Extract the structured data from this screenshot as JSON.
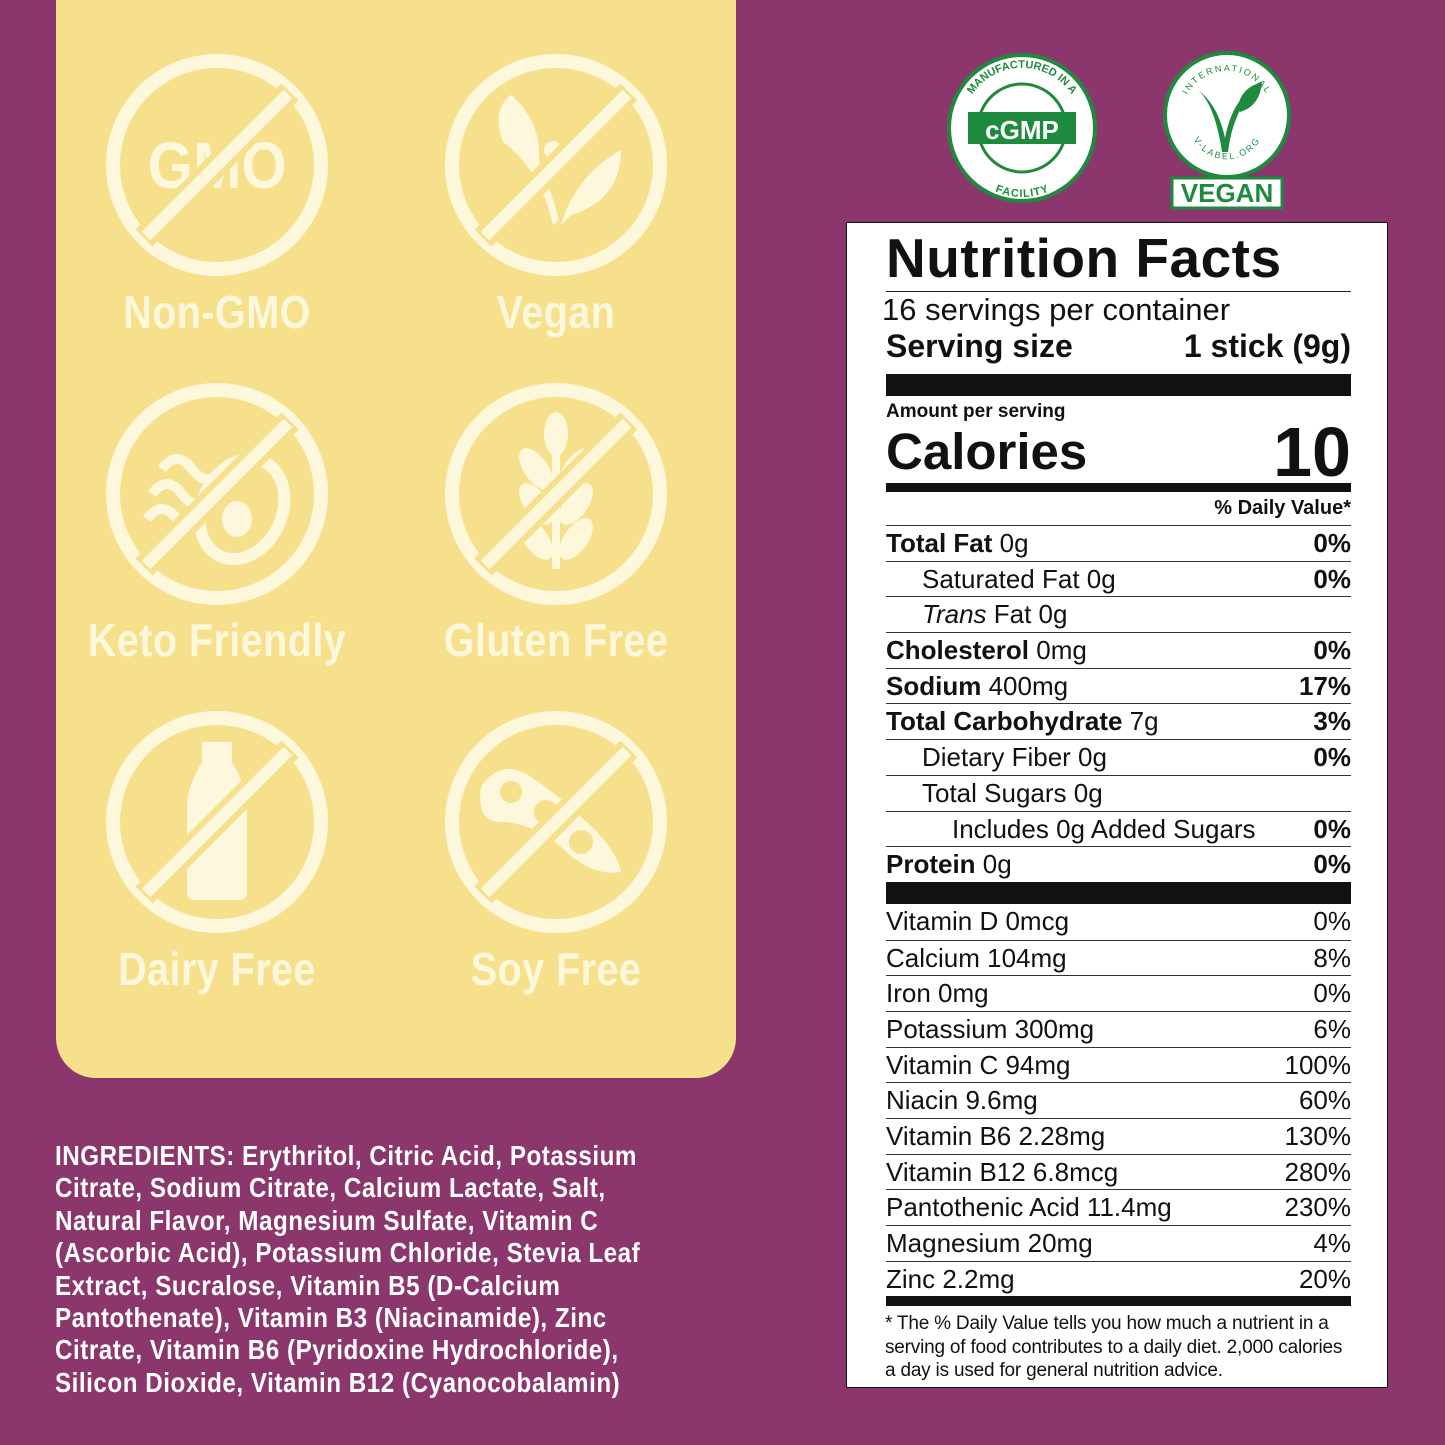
{
  "colors": {
    "background": "#8b366c",
    "panel": "#f6e08b",
    "icon": "#fdf7dc",
    "badge_green": "#1e8a3e"
  },
  "icons": [
    {
      "name": "non-gmo-icon",
      "glyph": "GMO",
      "label": "Non-GMO"
    },
    {
      "name": "vegan-icon",
      "label": "Vegan"
    },
    {
      "name": "keto-icon",
      "label": "Keto Friendly"
    },
    {
      "name": "gluten-free-icon",
      "label": "Gluten Free"
    },
    {
      "name": "dairy-free-icon",
      "label": "Dairy Free"
    },
    {
      "name": "soy-free-icon",
      "label": "Soy Free"
    }
  ],
  "badges": {
    "cgmp": {
      "center": "cGMP",
      "ring_top": "MANUFACTURED IN A",
      "ring_bottom": "FACILITY"
    },
    "vlabel": {
      "ring_top": "INTERNATIONAL",
      "ring_bottom": "V-LABEL.ORG",
      "banner": "VEGAN"
    }
  },
  "ingredients": {
    "heading": "INGREDIENTS:",
    "lines": [
      " Erythritol, Citric Acid, Potassium",
      "Citrate, Sodium Citrate, Calcium Lactate, Salt,",
      "Natural Flavor, Magnesium Sulfate, Vitamin C",
      "(Ascorbic Acid), Potassium Chloride, Stevia Leaf",
      "Extract, Sucralose, Vitamin B5 (D-Calcium",
      "Pantothenate), Vitamin B3 (Niacinamide), Zinc",
      "Citrate, Vitamin B6 (Pyridoxine Hydrochloride),",
      "Silicon Dioxide, Vitamin B12 (Cyanocobalamin)"
    ]
  },
  "nutrition": {
    "title": "Nutrition Facts",
    "servings": "16 servings per container",
    "serving_size_label": "Serving size",
    "serving_size": "1 stick (9g)",
    "amount_per_serving": "Amount per serving",
    "calories_label": "Calories",
    "calories": "10",
    "dv_header": "% Daily Value*",
    "rows": [
      {
        "bold": "Total Fat",
        "amt": " 0g",
        "dv": "0%",
        "indent": 0
      },
      {
        "bold": "",
        "amt": "Saturated Fat 0g",
        "dv": "0%",
        "indent": 1
      },
      {
        "bold": "",
        "italic": "Trans",
        "amt": " Fat 0g",
        "dv": "",
        "indent": 1
      },
      {
        "bold": "Cholesterol",
        "amt": " 0mg",
        "dv": "0%",
        "indent": 0
      },
      {
        "bold": "Sodium",
        "amt": " 400mg",
        "dv": "17%",
        "indent": 0
      },
      {
        "bold": "Total Carbohydrate",
        "amt": " 7g",
        "dv": "3%",
        "indent": 0
      },
      {
        "bold": "",
        "amt": "Dietary Fiber 0g",
        "dv": "0%",
        "indent": 1
      },
      {
        "bold": "",
        "amt": "Total Sugars 0g",
        "dv": "",
        "indent": 1
      },
      {
        "bold": "",
        "amt": "Includes 0g Added Sugars",
        "dv": "0%",
        "indent": 2
      },
      {
        "bold": "Protein",
        "amt": " 0g",
        "dv": "0%",
        "indent": 0
      }
    ],
    "vitamins": [
      {
        "name": "Vitamin D 0mcg",
        "dv": "0%"
      },
      {
        "name": "Calcium 104mg",
        "dv": "8%"
      },
      {
        "name": "Iron 0mg",
        "dv": "0%"
      },
      {
        "name": "Potassium 300mg",
        "dv": "6%"
      },
      {
        "name": "Vitamin C 94mg",
        "dv": "100%"
      },
      {
        "name": "Niacin 9.6mg",
        "dv": "60%"
      },
      {
        "name": "Vitamin B6 2.28mg",
        "dv": "130%"
      },
      {
        "name": "Vitamin B12 6.8mcg",
        "dv": "280%"
      },
      {
        "name": "Pantothenic Acid 11.4mg",
        "dv": "230%"
      },
      {
        "name": "Magnesium 20mg",
        "dv": "4%"
      },
      {
        "name": "Zinc 2.2mg",
        "dv": "20%"
      }
    ],
    "footnote": "* The % Daily Value tells you how much a nutrient in a serving of food contributes to a daily diet. 2,000 calories a day is used for general nutrition advice."
  }
}
